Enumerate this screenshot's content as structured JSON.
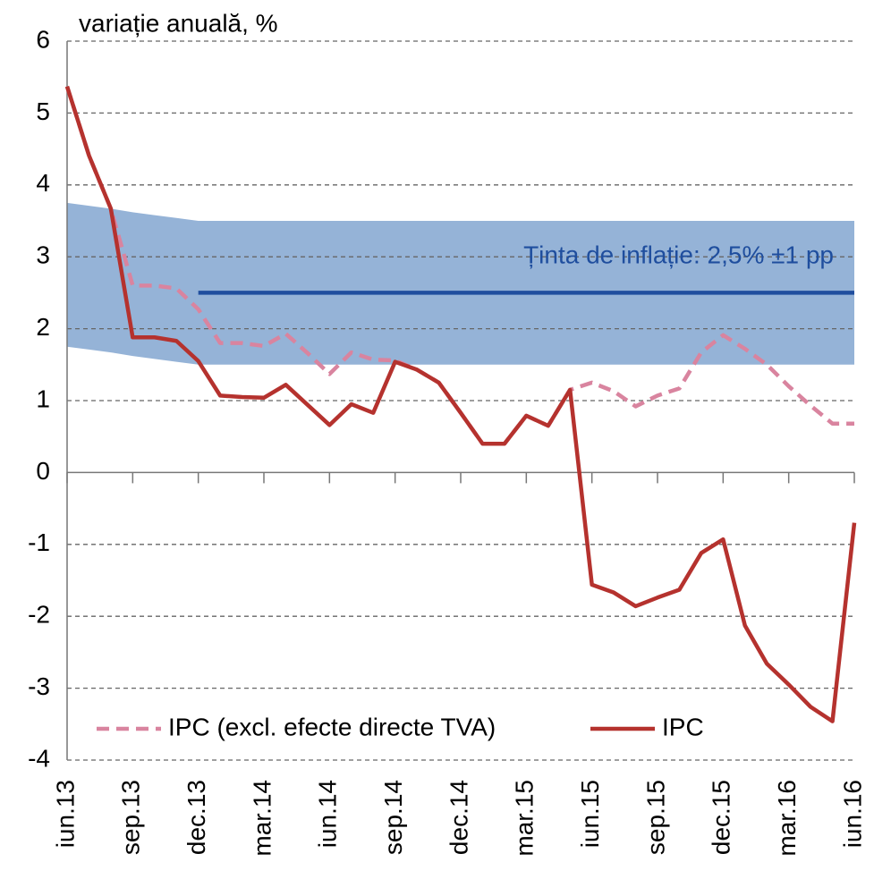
{
  "chart_data": {
    "type": "line",
    "y_label": "variație anuală, %",
    "categories": [
      "iun.13",
      null,
      null,
      "sep.13",
      null,
      null,
      "dec.13",
      null,
      null,
      "mar.14",
      null,
      null,
      "iun.14",
      null,
      null,
      "sep.14",
      null,
      null,
      "dec.14",
      null,
      null,
      "mar.15",
      null,
      null,
      "iun.15",
      null,
      null,
      "sep.15",
      null,
      null,
      "dec.15",
      null,
      null,
      "mar.16",
      null,
      null,
      "iun.16"
    ],
    "ylim": [
      -4,
      6
    ],
    "yticks": [
      -4,
      -3,
      -2,
      -1,
      0,
      1,
      2,
      3,
      4,
      5,
      6
    ],
    "grid": true,
    "legend": "bottom",
    "target_band": {
      "color": "#95b3d7",
      "upper": [
        3.75,
        3.71,
        3.67,
        3.62,
        3.58,
        3.54,
        3.5,
        3.5,
        3.5,
        3.5,
        3.5,
        3.5,
        3.5,
        3.5,
        3.5,
        3.5,
        3.5,
        3.5,
        3.5,
        3.5,
        3.5,
        3.5,
        3.5,
        3.5,
        3.5,
        3.5,
        3.5,
        3.5,
        3.5,
        3.5,
        3.5,
        3.5,
        3.5,
        3.5,
        3.5,
        3.5,
        3.5
      ],
      "lower": [
        1.75,
        1.71,
        1.67,
        1.62,
        1.58,
        1.54,
        1.5,
        1.5,
        1.5,
        1.5,
        1.5,
        1.5,
        1.5,
        1.5,
        1.5,
        1.5,
        1.5,
        1.5,
        1.5,
        1.5,
        1.5,
        1.5,
        1.5,
        1.5,
        1.5,
        1.5,
        1.5,
        1.5,
        1.5,
        1.5,
        1.5,
        1.5,
        1.5,
        1.5,
        1.5,
        1.5,
        1.5
      ]
    },
    "target_line": {
      "color": "#1f4e9e",
      "label": "Ținta de inflație: 2,5% ±1 pp",
      "values": [
        null,
        null,
        null,
        null,
        null,
        null,
        2.5,
        2.5,
        2.5,
        2.5,
        2.5,
        2.5,
        2.5,
        2.5,
        2.5,
        2.5,
        2.5,
        2.5,
        2.5,
        2.5,
        2.5,
        2.5,
        2.5,
        2.5,
        2.5,
        2.5,
        2.5,
        2.5,
        2.5,
        2.5,
        2.5,
        2.5,
        2.5,
        2.5,
        2.5,
        2.5,
        2.5
      ]
    },
    "series": [
      {
        "name": "IPC (excl. efecte directe TVA)",
        "color": "#d9849f",
        "dashed": true,
        "values": [
          5.37,
          4.41,
          3.67,
          2.6,
          2.6,
          2.56,
          2.27,
          1.8,
          1.8,
          1.76,
          1.93,
          1.66,
          1.37,
          1.67,
          1.57,
          1.56,
          1.43,
          1.25,
          0.83,
          0.4,
          0.4,
          0.79,
          0.65,
          1.15,
          1.25,
          1.13,
          0.92,
          1.07,
          1.17,
          1.67,
          1.91,
          1.72,
          1.5,
          1.2,
          0.93,
          0.68,
          0.68
        ]
      },
      {
        "name": "IPC",
        "color": "#b5322e",
        "dashed": false,
        "values": [
          5.37,
          4.41,
          3.67,
          1.88,
          1.88,
          1.83,
          1.55,
          1.07,
          1.05,
          1.04,
          1.22,
          0.94,
          0.66,
          0.95,
          0.83,
          1.54,
          1.43,
          1.25,
          0.83,
          0.4,
          0.4,
          0.79,
          0.65,
          1.15,
          -1.56,
          -1.67,
          -1.86,
          -1.74,
          -1.63,
          -1.12,
          -0.93,
          -2.13,
          -2.66,
          -2.95,
          -3.26,
          -3.46,
          -0.7
        ]
      }
    ]
  }
}
